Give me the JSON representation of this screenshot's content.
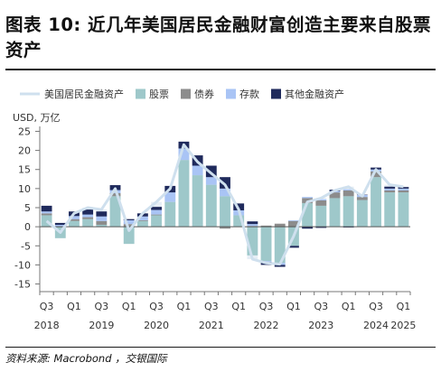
{
  "title": "图表 10: 近几年美国居民金融财富创造主要来自股票资产",
  "source": "资料来源: Macrobond ，交银国际",
  "chart_data": {
    "type": "bar",
    "stacked": true,
    "unit_label": "USD, 万亿",
    "ylim": [
      -17,
      27
    ],
    "yticks": [
      25,
      20,
      15,
      10,
      5,
      0,
      -5,
      -10,
      -15
    ],
    "grid": false,
    "legend_position": "top",
    "colors": {
      "total": "#cfe0ee",
      "equity": "#9ec8ca",
      "bond": "#8c8c8c",
      "deposit": "#a9c4f5",
      "other": "#1f2a5c"
    },
    "categories": [
      "2018Q3",
      "2018Q4",
      "2019Q1",
      "2019Q2",
      "2019Q3",
      "2019Q4",
      "2020Q1",
      "2020Q2",
      "2020Q3",
      "2020Q4",
      "2021Q1",
      "2021Q2",
      "2021Q3",
      "2021Q4",
      "2022Q1",
      "2022Q2",
      "2022Q3",
      "2022Q4",
      "2023Q1",
      "2023Q2",
      "2023Q3",
      "2023Q4",
      "2024Q1",
      "2024Q2",
      "2024Q3",
      "2024Q4",
      "2025Q1"
    ],
    "x_tick_labels": [
      {
        "index": 0,
        "quarter": "Q3",
        "year": "2018"
      },
      {
        "index": 2,
        "quarter": "Q1",
        "year": ""
      },
      {
        "index": 4,
        "quarter": "Q3",
        "year": "2019"
      },
      {
        "index": 6,
        "quarter": "Q1",
        "year": ""
      },
      {
        "index": 8,
        "quarter": "Q3",
        "year": "2020"
      },
      {
        "index": 10,
        "quarter": "Q1",
        "year": ""
      },
      {
        "index": 12,
        "quarter": "Q3",
        "year": "2021"
      },
      {
        "index": 14,
        "quarter": "Q1",
        "year": ""
      },
      {
        "index": 16,
        "quarter": "Q3",
        "year": "2022"
      },
      {
        "index": 18,
        "quarter": "Q1",
        "year": ""
      },
      {
        "index": 20,
        "quarter": "Q3",
        "year": "2023"
      },
      {
        "index": 22,
        "quarter": "Q1",
        "year": ""
      },
      {
        "index": 24,
        "quarter": "Q3",
        "year": "2024"
      },
      {
        "index": 26,
        "quarter": "Q1",
        "year": "2025"
      }
    ],
    "series": [
      {
        "name": "美国居民金融资产",
        "type": "line",
        "key": "total",
        "values": [
          1.5,
          -1.5,
          3.5,
          5,
          4.5,
          10,
          -1,
          3.5,
          6.5,
          10,
          21.5,
          17,
          14,
          11,
          4.5,
          -8.5,
          -9.5,
          -9.8,
          -2.5,
          6.5,
          7.5,
          9.5,
          10.5,
          8,
          15,
          11,
          10.5
        ]
      },
      {
        "name": "股票",
        "type": "bar",
        "key": "equity",
        "values": [
          3,
          -3,
          1.5,
          2,
          0.5,
          8,
          -4.5,
          1.5,
          3,
          6.5,
          17.5,
          13.5,
          11,
          8,
          3,
          -7.5,
          -9,
          -9.5,
          -5,
          6.2,
          5.5,
          7.5,
          8,
          7,
          13,
          9,
          9
        ]
      },
      {
        "name": "债券",
        "type": "bar",
        "key": "bond",
        "values": [
          0.5,
          0,
          0.5,
          0.5,
          1,
          0.8,
          0.7,
          0.2,
          0.2,
          0,
          0,
          0,
          0,
          -0.5,
          0,
          0.2,
          0.3,
          0.8,
          1.5,
          1.3,
          1.4,
          1.5,
          1.5,
          0.8,
          1.5,
          0.5,
          0.5
        ]
      },
      {
        "name": "存款",
        "type": "bar",
        "key": "deposit",
        "values": [
          0.5,
          0.5,
          0.8,
          0.7,
          1.2,
          0.8,
          1,
          1,
          1.2,
          2.5,
          3,
          2.5,
          2,
          2,
          1.3,
          0.5,
          -0.2,
          -0.5,
          0.2,
          0.3,
          0.3,
          0.3,
          0.3,
          0.5,
          0.5,
          0.5,
          0.5
        ]
      },
      {
        "name": "其他金融资产",
        "type": "bar",
        "key": "other",
        "values": [
          1.5,
          0.5,
          1.2,
          1.3,
          1.3,
          1.3,
          0.3,
          0.8,
          0.8,
          1.7,
          1.8,
          2.7,
          3,
          3,
          1.8,
          0.7,
          -0.8,
          -0.5,
          -0.5,
          -0.5,
          -0.3,
          0.4,
          -0.2,
          0.1,
          0.5,
          0.5,
          0.4
        ]
      }
    ]
  }
}
